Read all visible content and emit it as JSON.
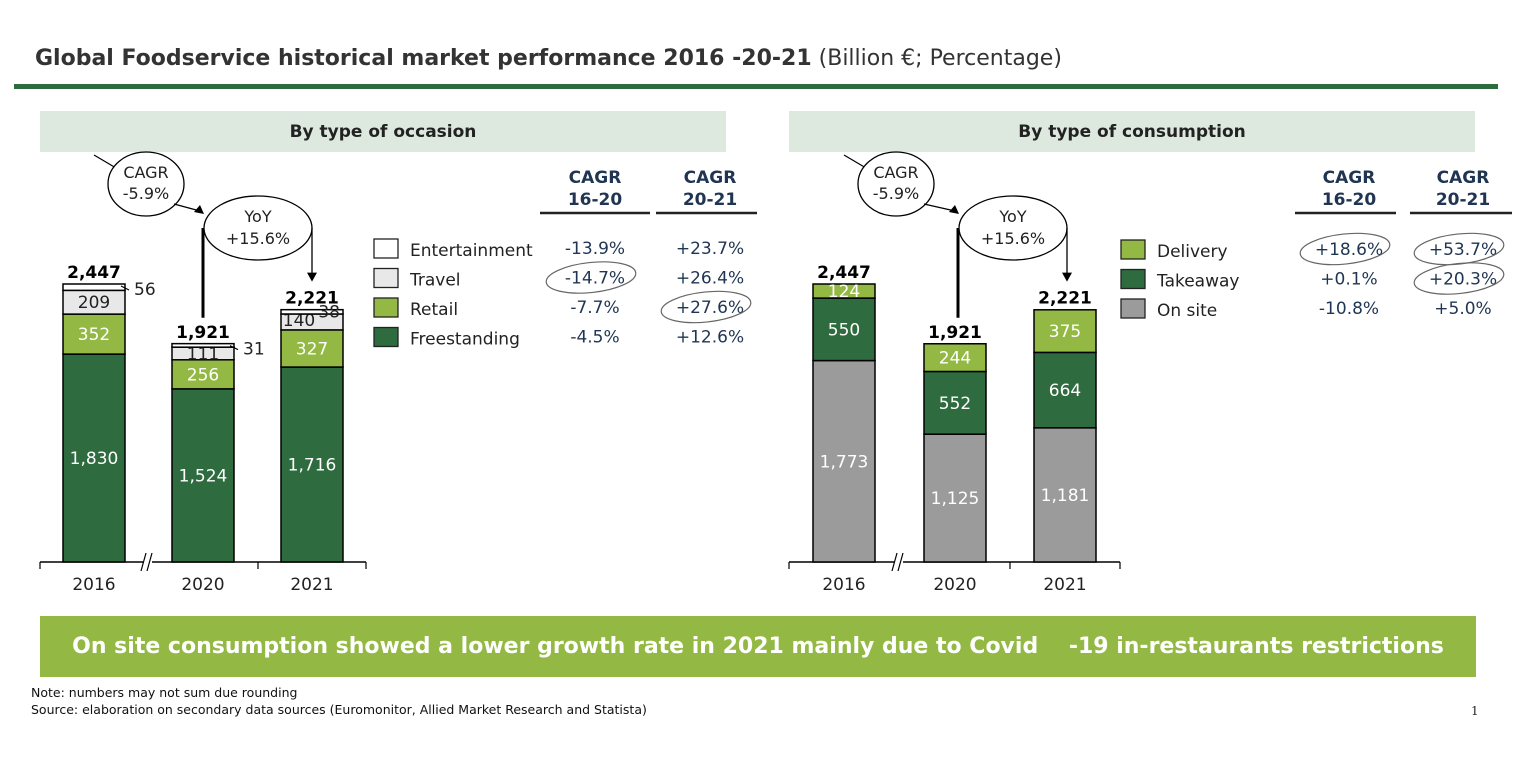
{
  "title": {
    "bold": "Global Foodservice historical market performance 2016 -20-21",
    "unit": "(Billion €; Percentage)"
  },
  "colors": {
    "title_rule": "#2e6b3e",
    "header_bg": "#dde9df",
    "banner_bg": "#93b944",
    "freestanding": "#2e6b3e",
    "retail": "#93b944",
    "travel": "#e8e8e8",
    "entertainment": "#ffffff",
    "delivery": "#93b944",
    "takeaway": "#2e6b3e",
    "on_site": "#9b9b9b",
    "cagr_text": "#1f3552"
  },
  "chart_data": [
    {
      "type": "bar",
      "stacked": true,
      "title": "By type of occasion",
      "xlabel": "",
      "ylabel": "Billion €",
      "categories": [
        "2016",
        "2020",
        "2021"
      ],
      "axis_break_between": [
        "2016",
        "2020"
      ],
      "series": [
        {
          "name": "Freestanding",
          "values": [
            1830,
            1524,
            1716
          ],
          "labels": [
            "1,830",
            "1,524",
            "1,716"
          ]
        },
        {
          "name": "Retail",
          "values": [
            352,
            256,
            327
          ],
          "labels": [
            "352",
            "256",
            "327"
          ]
        },
        {
          "name": "Travel",
          "values": [
            209,
            111,
            140
          ],
          "labels": [
            "209",
            "111",
            "140"
          ]
        },
        {
          "name": "Entertainment",
          "values": [
            56,
            31,
            38
          ],
          "labels": [
            "56",
            "31",
            "38"
          ]
        }
      ],
      "totals": [
        2447,
        1921,
        2221
      ],
      "total_labels": [
        "2,447",
        "1,921",
        "2,221"
      ],
      "annotations": {
        "cagr_bubble": {
          "label": "CAGR",
          "value": "-5.9%"
        },
        "yoy_bubble": {
          "label": "YoY",
          "value": "+15.6%"
        }
      },
      "legend": [
        "Entertainment",
        "Travel",
        "Retail",
        "Freestanding"
      ],
      "cagr_table": {
        "headers": [
          [
            "CAGR",
            "16-20"
          ],
          [
            "CAGR",
            "20-21"
          ]
        ],
        "rows": [
          {
            "name": "Entertainment",
            "cagr_16_20": "-13.9%",
            "cagr_20_21": "+23.7%",
            "circled": []
          },
          {
            "name": "Travel",
            "cagr_16_20": "-14.7%",
            "cagr_20_21": "+26.4%",
            "circled": [
              "cagr_16_20"
            ]
          },
          {
            "name": "Retail",
            "cagr_16_20": "-7.7%",
            "cagr_20_21": "+27.6%",
            "circled": [
              "cagr_20_21"
            ]
          },
          {
            "name": "Freestanding",
            "cagr_16_20": "-4.5%",
            "cagr_20_21": "+12.6%",
            "circled": []
          }
        ]
      }
    },
    {
      "type": "bar",
      "stacked": true,
      "title": "By type of consumption",
      "xlabel": "",
      "ylabel": "Billion €",
      "categories": [
        "2016",
        "2020",
        "2021"
      ],
      "axis_break_between": [
        "2016",
        "2020"
      ],
      "series": [
        {
          "name": "On site",
          "values": [
            1773,
            1125,
            1181
          ],
          "labels": [
            "1,773",
            "1,125",
            "1,181"
          ]
        },
        {
          "name": "Takeaway",
          "values": [
            550,
            552,
            664
          ],
          "labels": [
            "550",
            "552",
            "664"
          ]
        },
        {
          "name": "Delivery",
          "values": [
            124,
            244,
            375
          ],
          "labels": [
            "124",
            "244",
            "375"
          ]
        }
      ],
      "totals": [
        2447,
        1921,
        2221
      ],
      "total_labels": [
        "2,447",
        "1,921",
        "2,221"
      ],
      "annotations": {
        "cagr_bubble": {
          "label": "CAGR",
          "value": "-5.9%"
        },
        "yoy_bubble": {
          "label": "YoY",
          "value": "+15.6%"
        }
      },
      "legend": [
        "Delivery",
        "Takeaway",
        "On site"
      ],
      "cagr_table": {
        "headers": [
          [
            "CAGR",
            "16-20"
          ],
          [
            "CAGR",
            "20-21"
          ]
        ],
        "rows": [
          {
            "name": "Delivery",
            "cagr_16_20": "+18.6%",
            "cagr_20_21": "+53.7%",
            "circled": [
              "cagr_16_20",
              "cagr_20_21"
            ]
          },
          {
            "name": "Takeaway",
            "cagr_16_20": "+0.1%",
            "cagr_20_21": "+20.3%",
            "circled": [
              "cagr_20_21"
            ]
          },
          {
            "name": "On site",
            "cagr_16_20": "-10.8%",
            "cagr_20_21": "+5.0%",
            "circled": []
          }
        ]
      }
    }
  ],
  "banner": "On site consumption showed a lower growth rate in 2021 mainly due to Covid    -19 in-restaurants restrictions",
  "note": "Note: numbers may not sum due rounding",
  "source": "Source: elaboration on secondary data sources (Euromonitor, Allied Market Research and Statista)",
  "page_number": "1"
}
